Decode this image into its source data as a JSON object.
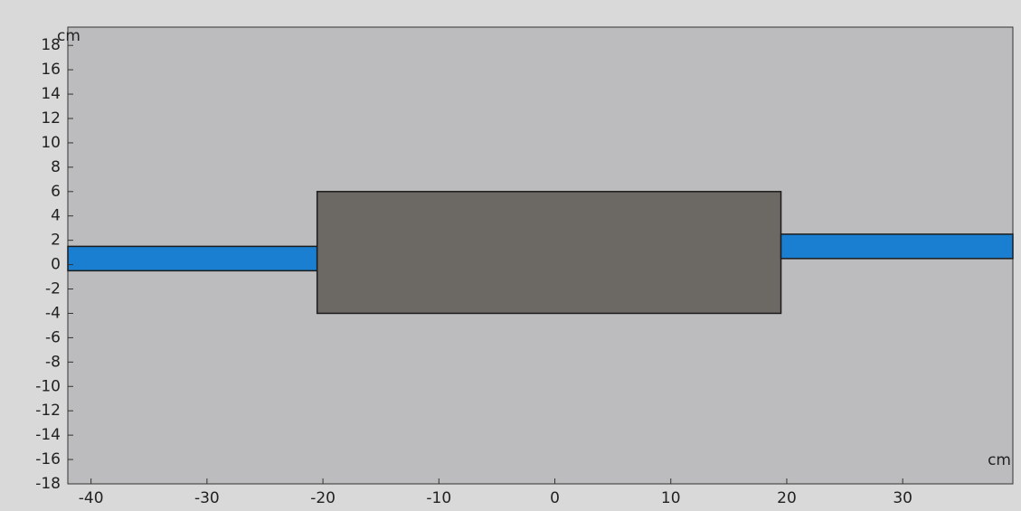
{
  "chart_data": {
    "type": "geometry",
    "x_unit": "cm",
    "y_unit": "cm",
    "xlim": [
      -42,
      39.5
    ],
    "ylim": [
      -18,
      19.5
    ],
    "xticks": [
      -40,
      -30,
      -20,
      -10,
      0,
      10,
      20,
      30
    ],
    "yticks": [
      -18,
      -16,
      -14,
      -12,
      -10,
      -8,
      -6,
      -4,
      -2,
      0,
      2,
      4,
      6,
      8,
      10,
      12,
      14,
      16,
      18
    ],
    "background": "#bcbcbe",
    "shapes": [
      {
        "x": [
          -42,
          -20.5
        ],
        "y": [
          -0.5,
          1.5
        ],
        "color": "#1a7fd0"
      },
      {
        "x": [
          -20.5,
          19.5
        ],
        "y": [
          -4,
          6
        ],
        "color": "#6c6965"
      },
      {
        "x": [
          19.5,
          39.5
        ],
        "y": [
          0.5,
          2.5
        ],
        "color": "#1a7fd0"
      }
    ]
  }
}
